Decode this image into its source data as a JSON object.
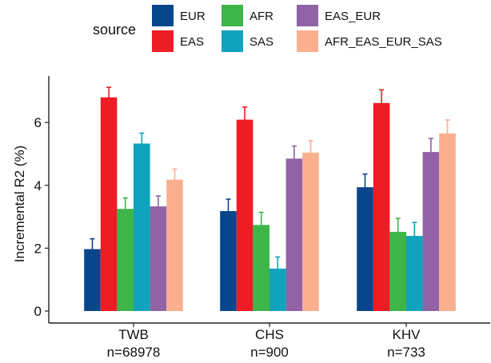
{
  "chart_data": {
    "type": "bar",
    "ylabel": "Incremental R2 (%)",
    "ylim": [
      0,
      7.35
    ],
    "yticks": [
      0,
      2,
      4,
      6
    ],
    "grid": false,
    "legend": {
      "title": "source",
      "placement": "top",
      "entries": [
        {
          "name": "EUR",
          "color": "#08468c"
        },
        {
          "name": "AFR",
          "color": "#3eb549"
        },
        {
          "name": "EAS_EUR",
          "color": "#9062a6"
        },
        {
          "name": "EAS",
          "color": "#ee1c24"
        },
        {
          "name": "SAS",
          "color": "#0fa3be"
        },
        {
          "name": "AFR_EAS_EUR_SAS",
          "color": "#fbaf8f"
        }
      ]
    },
    "categories": [
      "TWB",
      "CHS",
      "KHV"
    ],
    "category_sublabels": [
      "n=68978",
      "n=900",
      "n=733"
    ],
    "series": [
      {
        "name": "EUR",
        "color": "#08468c",
        "values": [
          1.97,
          3.18,
          3.94
        ],
        "errors": [
          0.33,
          0.38,
          0.42
        ]
      },
      {
        "name": "EAS",
        "color": "#ee1c24",
        "values": [
          6.8,
          6.09,
          6.62
        ],
        "errors": [
          0.32,
          0.4,
          0.42
        ]
      },
      {
        "name": "AFR",
        "color": "#3eb549",
        "values": [
          3.25,
          2.74,
          2.52
        ],
        "errors": [
          0.35,
          0.4,
          0.43
        ]
      },
      {
        "name": "SAS",
        "color": "#0fa3be",
        "values": [
          5.33,
          1.35,
          2.39
        ],
        "errors": [
          0.33,
          0.37,
          0.43
        ]
      },
      {
        "name": "EAS_EUR",
        "color": "#9062a6",
        "values": [
          3.33,
          4.85,
          5.06
        ],
        "errors": [
          0.33,
          0.4,
          0.43
        ]
      },
      {
        "name": "AFR_EAS_EUR_SAS",
        "color": "#fbaf8f",
        "values": [
          4.18,
          5.04,
          5.65
        ],
        "errors": [
          0.34,
          0.38,
          0.43
        ]
      }
    ]
  }
}
